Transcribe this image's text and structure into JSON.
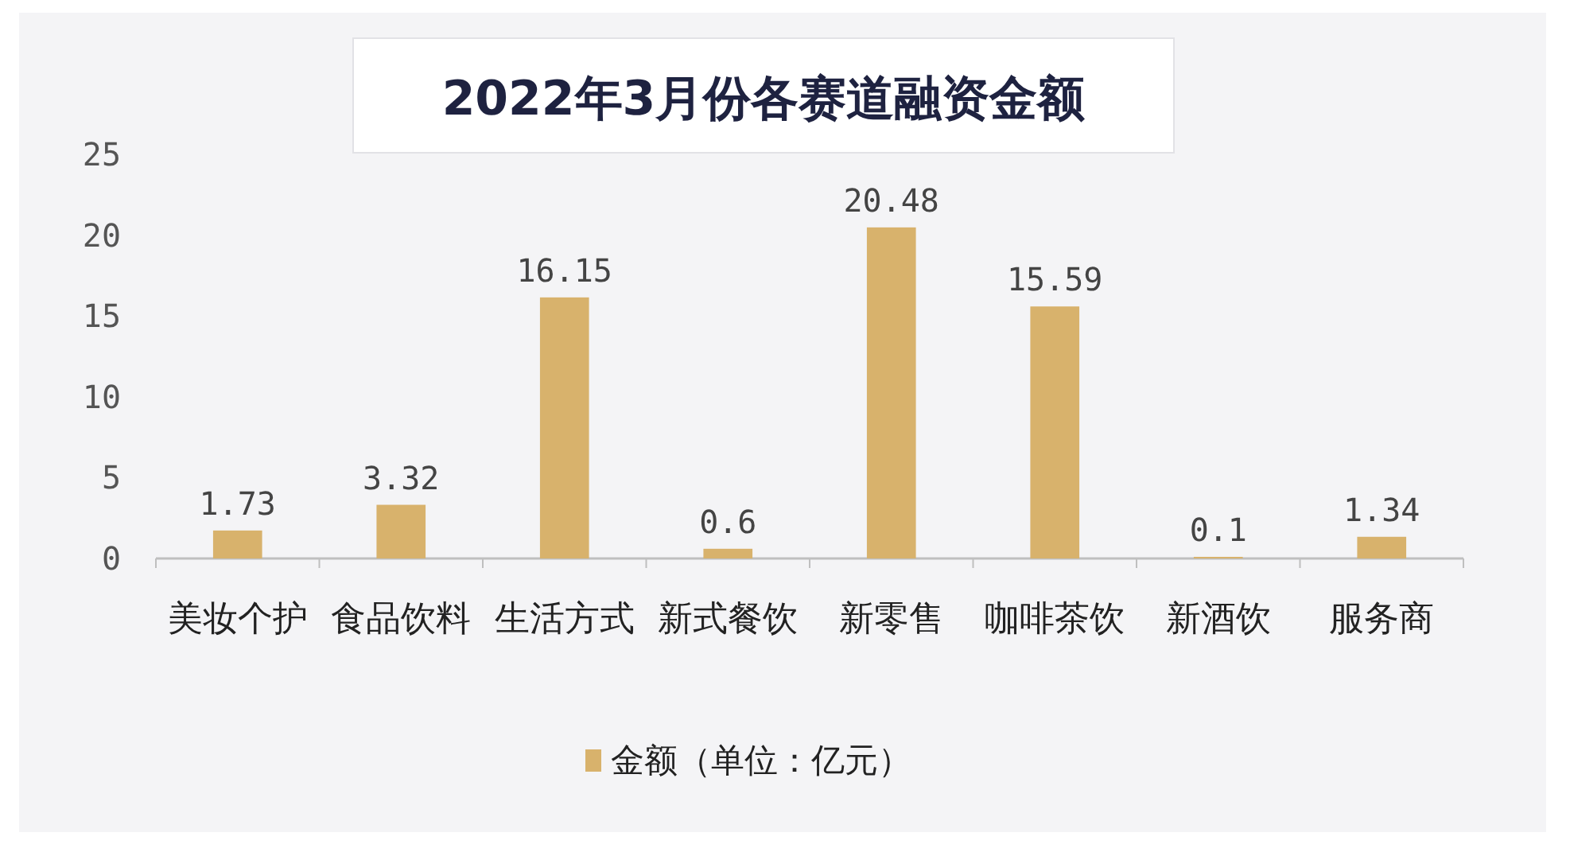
{
  "chart_data": {
    "type": "bar",
    "title": "2022年3月份各赛道融资金额",
    "categories": [
      "美妆个护",
      "食品饮料",
      "生活方式",
      "新式餐饮",
      "新零售",
      "咖啡茶饮",
      "新酒饮",
      "服务商"
    ],
    "series": [
      {
        "name": "金额（单位：亿元）",
        "color": "#d8b26c",
        "values": [
          1.73,
          3.32,
          16.15,
          0.6,
          20.48,
          15.59,
          0.1,
          1.34
        ]
      }
    ],
    "ylim": [
      0,
      25
    ],
    "yticks": [
      0,
      5,
      10,
      15,
      20,
      25
    ],
    "data_labels": true,
    "legend": "bottom"
  }
}
